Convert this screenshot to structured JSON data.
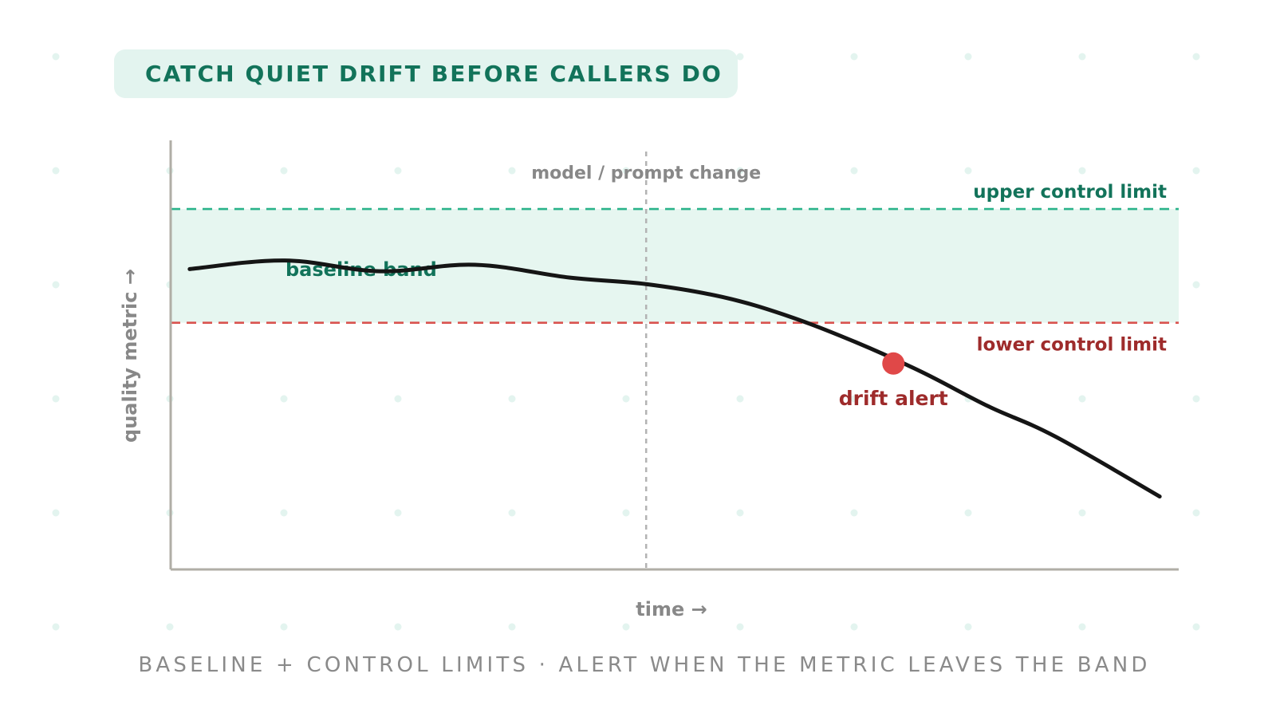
{
  "title": "CATCH QUIET DRIFT BEFORE CALLERS DO",
  "subtitle": "BASELINE + CONTROL LIMITS · ALERT WHEN THE METRIC LEAVES THE BAND",
  "colors": {
    "accent_green": "#12735a",
    "band_fill": "#e6f6f0",
    "upper_line": "#2ab38a",
    "lower_line": "#d9534f",
    "alert_text": "#9e2b2b",
    "alert_dot": "#e04848",
    "metric_line": "#151515",
    "muted": "#888888"
  },
  "chart_data": {
    "type": "line",
    "xlabel": "time →",
    "ylabel": "quality metric →",
    "xlim": [
      0,
      10.6
    ],
    "ylim": [
      0,
      10
    ],
    "upper_control_limit": {
      "label": "upper control limit",
      "value": 8.4
    },
    "lower_control_limit": {
      "label": "lower control limit",
      "value": 5.75
    },
    "baseline_band": {
      "label": "baseline band",
      "from": 5.75,
      "to": 8.4
    },
    "change_marker": {
      "label": "model / prompt change",
      "x": 5.0
    },
    "series": [
      {
        "x": [
          0.2,
          1.2,
          2.2,
          3.2,
          4.2,
          5.0,
          5.8,
          6.5,
          7.2,
          7.9,
          8.6,
          9.3,
          10.4
        ],
        "values": [
          7.0,
          7.2,
          6.95,
          7.1,
          6.8,
          6.65,
          6.35,
          5.9,
          5.3,
          4.6,
          3.8,
          3.1,
          1.7
        ]
      }
    ],
    "annotations": [
      {
        "label": "drift alert",
        "x": 7.6,
        "y": 4.8
      }
    ]
  }
}
